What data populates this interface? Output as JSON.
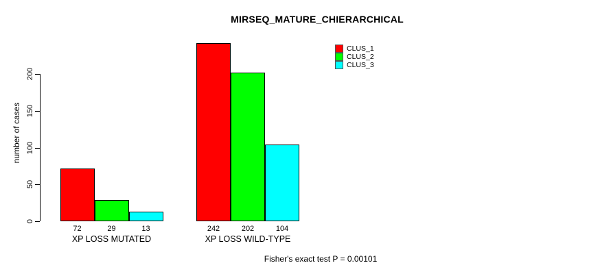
{
  "chart_data": {
    "type": "bar",
    "title": "MIRSEQ_MATURE_CHIERARCHICAL",
    "ylabel": "number of cases",
    "footer": "Fisher's exact test P = 0.00101",
    "categories": [
      "XP LOSS MUTATED",
      "XP LOSS WILD-TYPE"
    ],
    "series": [
      {
        "name": "CLUS_1",
        "color": "#ff0000",
        "values": [
          72,
          242
        ]
      },
      {
        "name": "CLUS_2",
        "color": "#00ff00",
        "values": [
          29,
          202
        ]
      },
      {
        "name": "CLUS_3",
        "color": "#00ffff",
        "values": [
          13,
          104
        ]
      }
    ],
    "bar_value_labels": [
      [
        "72",
        "29",
        "13"
      ],
      [
        "242",
        "202",
        "104"
      ]
    ],
    "yticks": [
      0,
      50,
      100,
      150,
      200
    ],
    "ylim": [
      0,
      250
    ],
    "grid": false,
    "legend_position": "top-right",
    "background_color": "#ffffff",
    "text_color": "#000000"
  }
}
